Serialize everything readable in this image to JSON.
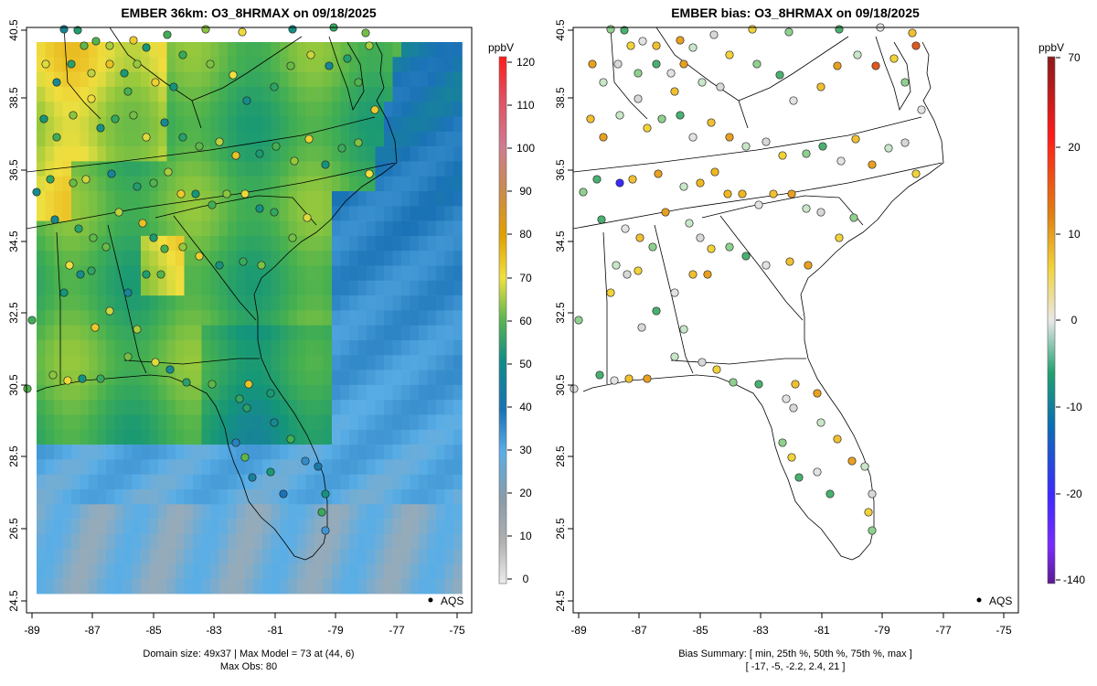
{
  "left_panel": {
    "title": "EMBER 36km: O3_8HRMAX on 09/18/2025",
    "colorbar_unit": "ppbV",
    "colorbar_ticks": [
      "0",
      "10",
      "20",
      "30",
      "40",
      "50",
      "60",
      "70",
      "80",
      "90",
      "100",
      "110",
      "120"
    ],
    "legend_label": "AQS",
    "footer_line1": "Domain size: 49x37 | Max Model = 73 at (44, 6)",
    "footer_line2": "Max Obs: 80"
  },
  "right_panel": {
    "title": "EMBER bias: O3_8HRMAX on 09/18/2025",
    "colorbar_unit": "ppbV",
    "colorbar_ticks": [
      "-140",
      "-20",
      "-10",
      "0",
      "10",
      "20",
      "70"
    ],
    "legend_label": "AQS",
    "footer_line1": "Bias Summary: [ min, 25th %, 50th %, 75th %, max ]",
    "footer_line2": "[ -17,   -5,   -2.2,   2.4,   21 ]"
  },
  "x_axis_ticks": [
    "-89",
    "-87",
    "-85",
    "-83",
    "-81",
    "-79",
    "-77",
    "-75"
  ],
  "y_axis_ticks": [
    "24.5",
    "26.5",
    "28.5",
    "30.5",
    "32.5",
    "34.5",
    "36.5",
    "38.5",
    "40.5"
  ],
  "colors": {
    "o3_scale": [
      "#e4e4e4",
      "#9c9c9c",
      "#5aaee6",
      "#1a72b6",
      "#1aa07c",
      "#5ab450",
      "#f0e040",
      "#e08a00",
      "#d02020"
    ],
    "bias_scale": [
      "#5a1a90",
      "#3a2aff",
      "#0a6eb4",
      "#20a070",
      "#e8e8e8",
      "#f2d23a",
      "#e08010",
      "#ff1a1a",
      "#8b1a1a"
    ]
  },
  "chart_data": {
    "type": "map",
    "lon_range": [
      -89,
      -75
    ],
    "lat_range": [
      24.5,
      40.5
    ],
    "grid_size": "49x37",
    "max_model": 73,
    "max_model_location": [
      44,
      6
    ],
    "max_obs": 80,
    "o3_colorbar_range": [
      0,
      120
    ],
    "bias_summary": {
      "min": -17,
      "p25": -5,
      "median": -2.2,
      "p75": 2.4,
      "max": 21
    }
  }
}
